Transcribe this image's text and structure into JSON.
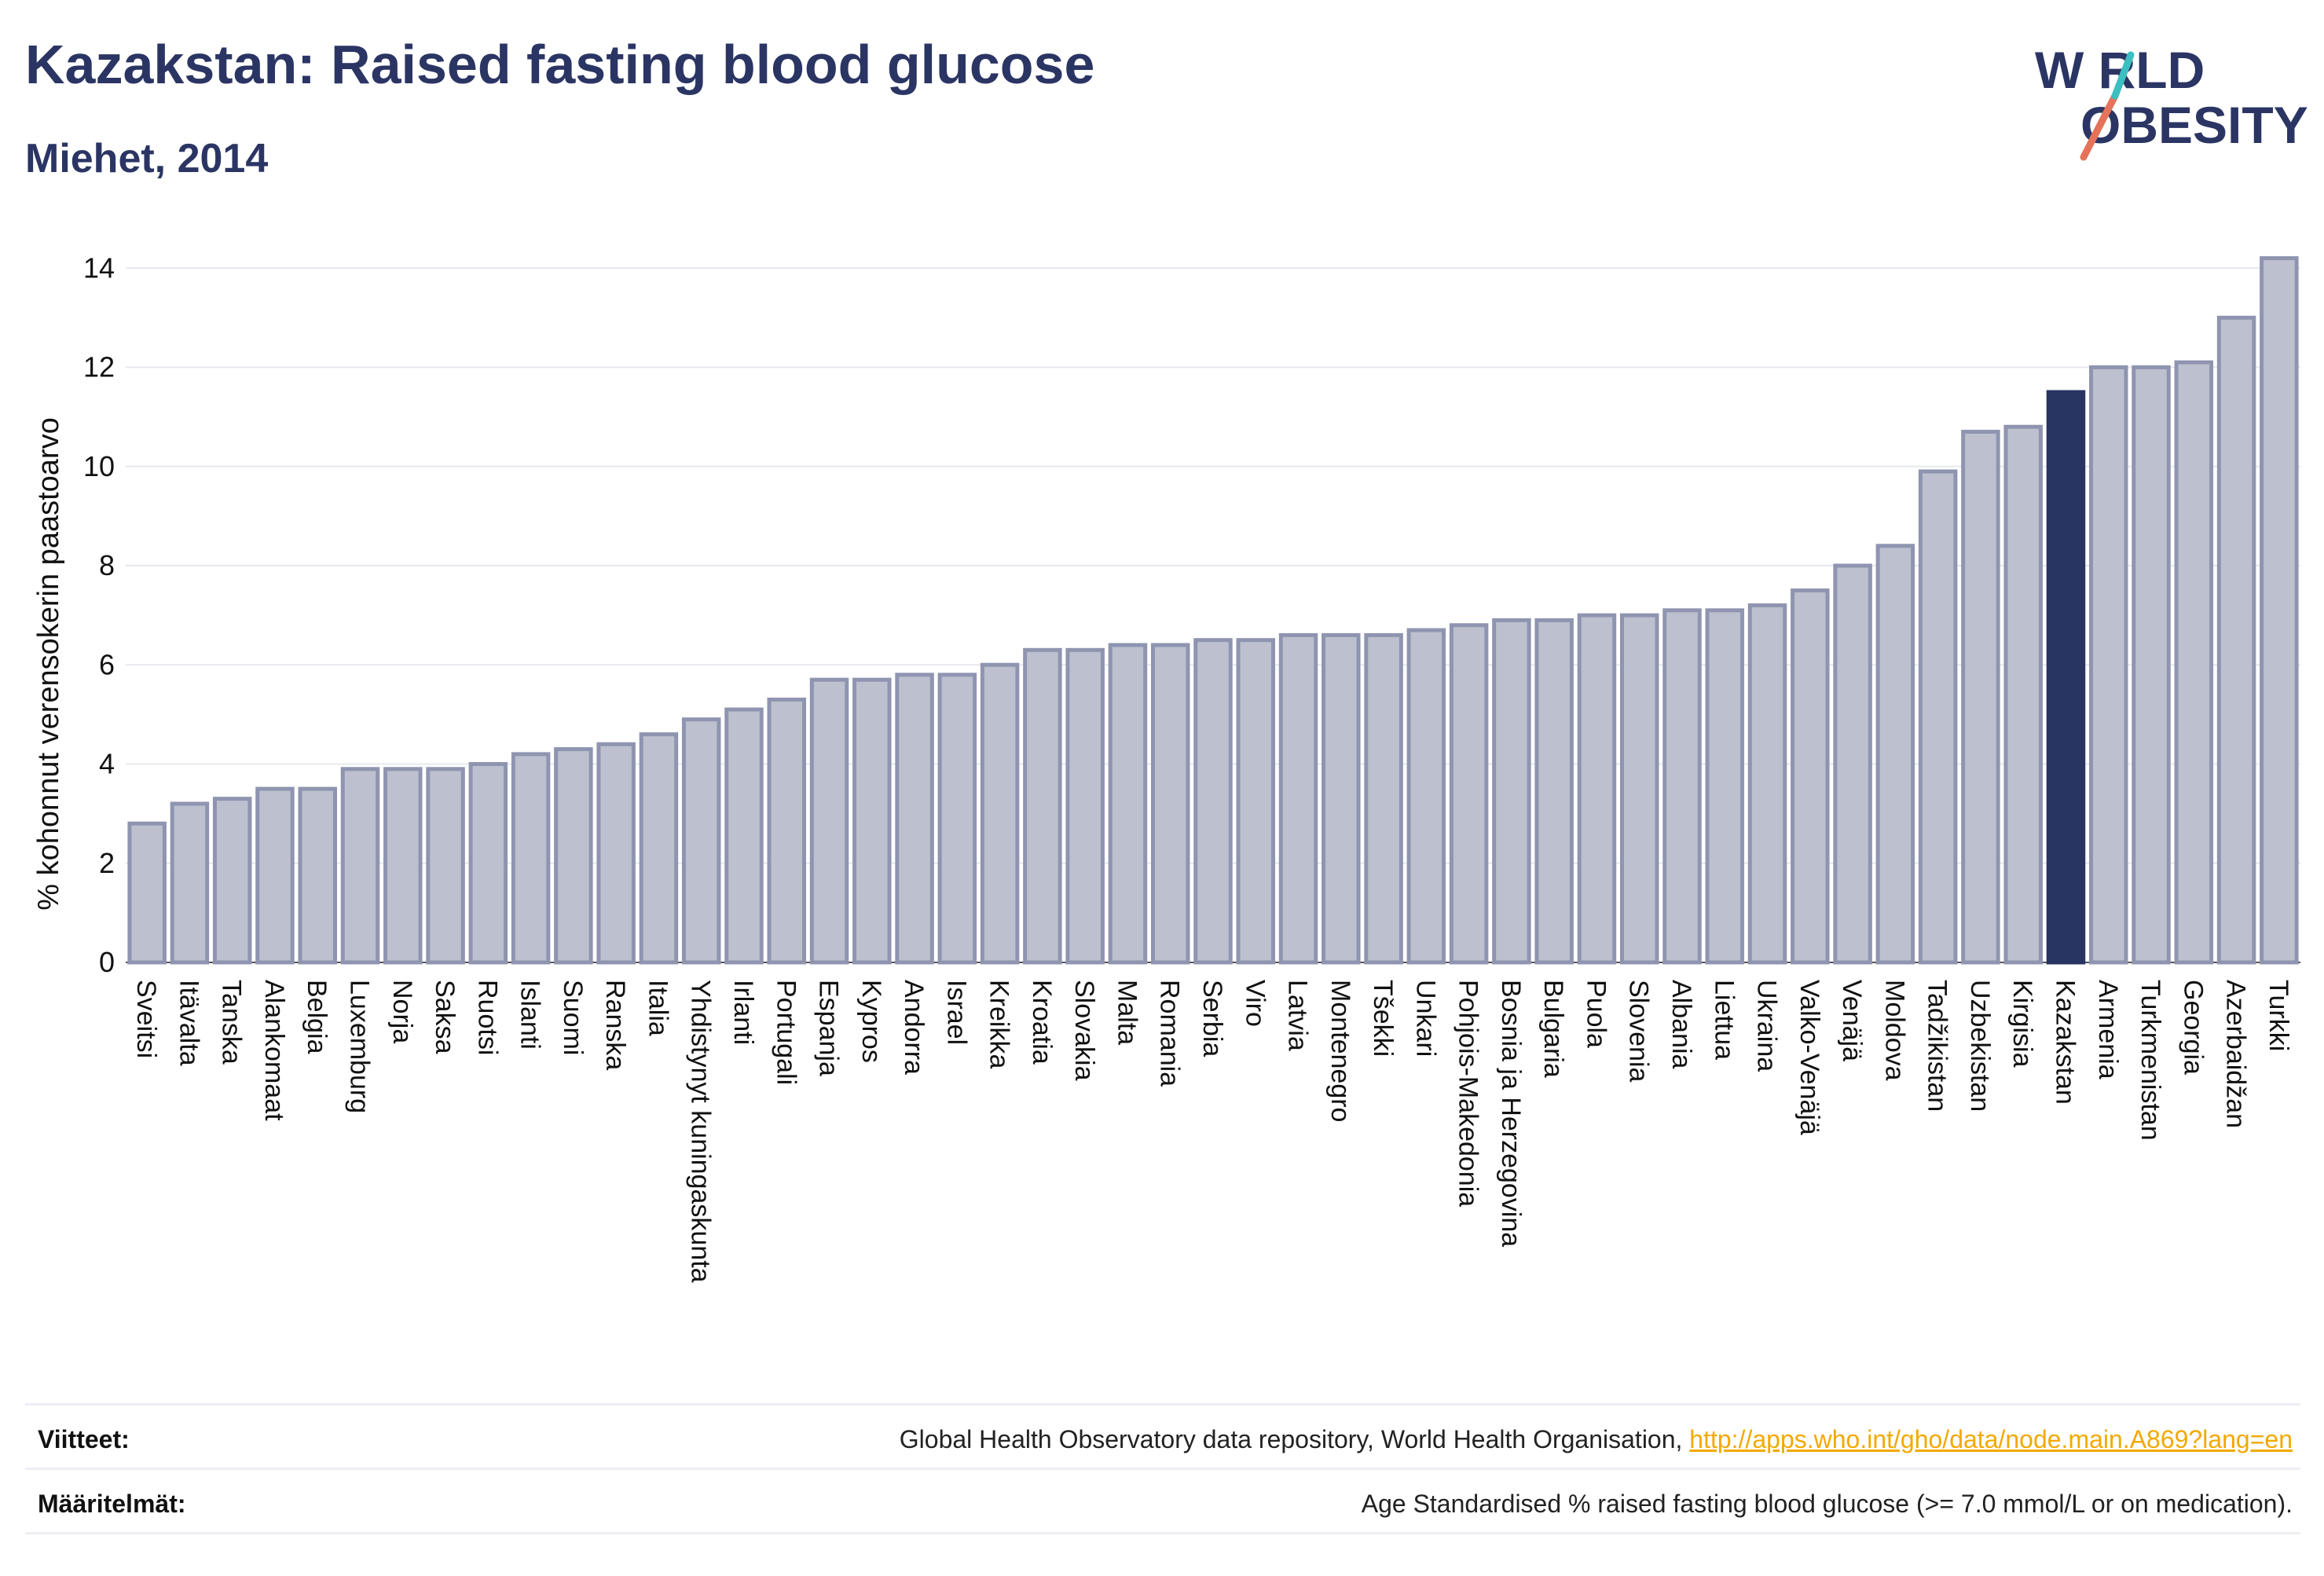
{
  "title": "Kazakstan: Raised fasting blood glucose",
  "subtitle": "Miehet, 2014",
  "logo": {
    "line1": "W RLD",
    "line2": "OBESITY",
    "icon": "world-obesity-slash-icon"
  },
  "footer": {
    "references_label": "Viitteet:",
    "references_text": "Global Health Observatory data repository, World Health Organisation, ",
    "references_link": "http://apps.who.int/gho/data/node.main.A869?lang=en",
    "definitions_label": "Määritelmät:",
    "definitions_text": "Age Standardised % raised fasting blood glucose (>= 7.0 mmol/L or on medication)."
  },
  "colors": {
    "bar": "#bcc0cf",
    "bar_edge": "#8f95b0",
    "highlight": "#283462",
    "grid": "#e6e8ee",
    "link": "#f2a900"
  },
  "chart_data": {
    "type": "bar",
    "title": "Kazakstan: Raised fasting blood glucose",
    "subtitle": "Miehet, 2014",
    "xlabel": "",
    "ylabel": "% kohonnut verensokerin paastoarvo",
    "ylim": [
      0,
      14.4
    ],
    "yticks": [
      0,
      2,
      4,
      6,
      8,
      10,
      12,
      14
    ],
    "grid": true,
    "highlight": "Kazakstan",
    "categories": [
      "Sveitsi",
      "Itävalta",
      "Tanska",
      "Alankomaat",
      "Belgia",
      "Luxemburg",
      "Norja",
      "Saksa",
      "Ruotsi",
      "Islanti",
      "Suomi",
      "Ranska",
      "Italia",
      "Yhdistynyt kuningaskunta",
      "Irlanti",
      "Portugali",
      "Espanja",
      "Kypros",
      "Andorra",
      "Israel",
      "Kreikka",
      "Kroatia",
      "Slovakia",
      "Malta",
      "Romania",
      "Serbia",
      "Viro",
      "Latvia",
      "Montenegro",
      "Tšekki",
      "Unkari",
      "Pohjois-Makedonia",
      "Bosnia ja Herzegovina",
      "Bulgaria",
      "Puola",
      "Slovenia",
      "Albania",
      "Liettua",
      "Ukraina",
      "Valko-Venäjä",
      "Venäjä",
      "Moldova",
      "Tadžikistan",
      "Uzbekistan",
      "Kirgisia",
      "Kazakstan",
      "Armenia",
      "Turkmenistan",
      "Georgia",
      "Azerbaidžan",
      "Turkki"
    ],
    "values": [
      2.8,
      3.2,
      3.3,
      3.5,
      3.5,
      3.9,
      3.9,
      3.9,
      4.0,
      4.2,
      4.3,
      4.4,
      4.6,
      4.9,
      5.1,
      5.3,
      5.7,
      5.7,
      5.8,
      5.8,
      6.0,
      6.3,
      6.3,
      6.4,
      6.4,
      6.5,
      6.5,
      6.6,
      6.6,
      6.6,
      6.7,
      6.8,
      6.9,
      6.9,
      7.0,
      7.0,
      7.1,
      7.1,
      7.2,
      7.5,
      8.0,
      8.4,
      9.9,
      10.7,
      10.8,
      11.5,
      12.0,
      12.0,
      12.1,
      13.0,
      14.2
    ]
  }
}
